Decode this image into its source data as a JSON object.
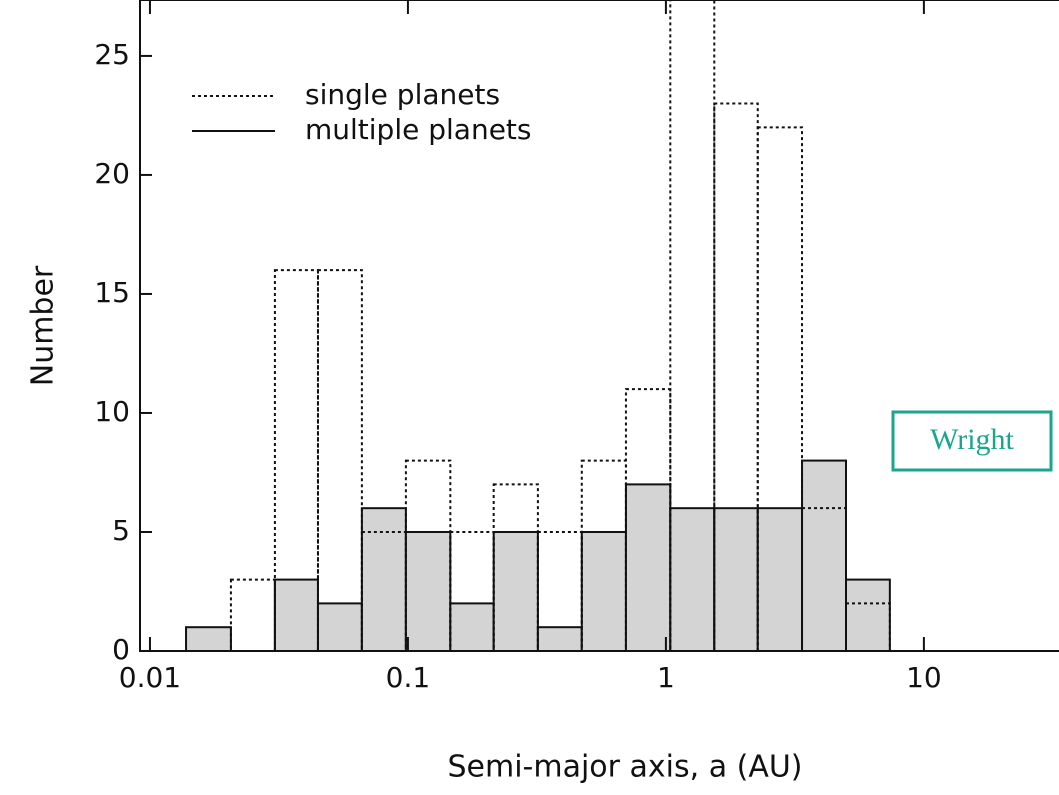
{
  "chart_data": {
    "type": "histogram",
    "xlabel": "Semi-major axis, a (AU)",
    "ylabel": "Number",
    "annotation": "Wright",
    "xscale": "log",
    "xlim": [
      0.00915,
      33.4
    ],
    "ylim": [
      0,
      27.35
    ],
    "xticks": [
      0.01,
      0.1,
      1,
      10
    ],
    "yticks": [
      0,
      5,
      10,
      15,
      20,
      25
    ],
    "legend": "upper left",
    "bins": [
      0.0138,
      0.0206,
      0.0305,
      0.0448,
      0.0663,
      0.0982,
      0.146,
      0.215,
      0.319,
      0.472,
      0.7,
      1.04,
      1.54,
      2.27,
      3.37,
      4.99,
      7.38
    ],
    "series": [
      {
        "name": "single planets",
        "color": "#111111",
        "style": "dotted",
        "values": [
          0,
          3,
          16,
          16,
          5,
          8,
          5,
          7,
          5,
          8,
          11,
          28,
          23,
          22,
          6,
          2
        ]
      },
      {
        "name": "multiple planets",
        "color": "#111111",
        "fill": "#d4d4d4",
        "style": "solid",
        "values": [
          1,
          0,
          3,
          2,
          6,
          5,
          2,
          5,
          1,
          5,
          7,
          6,
          6,
          6,
          8,
          3
        ]
      }
    ]
  }
}
